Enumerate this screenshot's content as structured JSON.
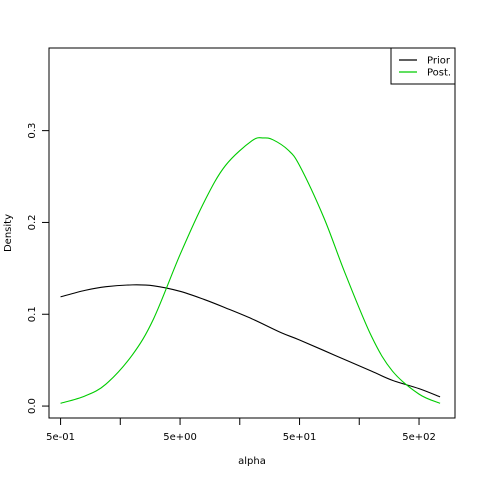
{
  "chart_data": {
    "type": "line",
    "title": "",
    "xlabel": "alpha",
    "ylabel": "Density",
    "x_scale": "log10",
    "xlim": [
      0.4,
      1000
    ],
    "ylim": [
      -0.013,
      0.39
    ],
    "x_major_ticks": [
      {
        "value": 0.5,
        "label": "5e-01"
      },
      {
        "value": 5,
        "label": "5e+00"
      },
      {
        "value": 50,
        "label": "5e+01"
      },
      {
        "value": 500,
        "label": "5e+02"
      }
    ],
    "x_minor_ticks": [
      1.58,
      15.8,
      158
    ],
    "y_ticks": [
      {
        "value": 0.0,
        "label": "0.0"
      },
      {
        "value": 0.1,
        "label": "0.1"
      },
      {
        "value": 0.2,
        "label": "0.2"
      },
      {
        "value": 0.3,
        "label": "0.3"
      }
    ],
    "grid": false,
    "legend": {
      "position": "top-right",
      "entries": [
        "Prior",
        "Post."
      ]
    },
    "series": [
      {
        "name": "Prior",
        "color": "#000000",
        "x": [
          0.5,
          0.8,
          1.2,
          2.0,
          3.0,
          5.0,
          8.0,
          12,
          20,
          35,
          50,
          100,
          200,
          300,
          500,
          750
        ],
        "y": [
          0.119,
          0.126,
          0.13,
          0.132,
          0.131,
          0.125,
          0.116,
          0.107,
          0.095,
          0.08,
          0.072,
          0.055,
          0.038,
          0.028,
          0.019,
          0.01
        ]
      },
      {
        "name": "Post.",
        "color": "#00cc00",
        "x": [
          0.5,
          0.8,
          1.2,
          2.0,
          3.0,
          5.0,
          8.0,
          12,
          20,
          25,
          30,
          40,
          50,
          80,
          120,
          200,
          300,
          500,
          750
        ],
        "y": [
          0.003,
          0.011,
          0.024,
          0.056,
          0.095,
          0.165,
          0.223,
          0.262,
          0.289,
          0.292,
          0.29,
          0.279,
          0.262,
          0.205,
          0.145,
          0.076,
          0.038,
          0.013,
          0.003
        ]
      }
    ]
  }
}
